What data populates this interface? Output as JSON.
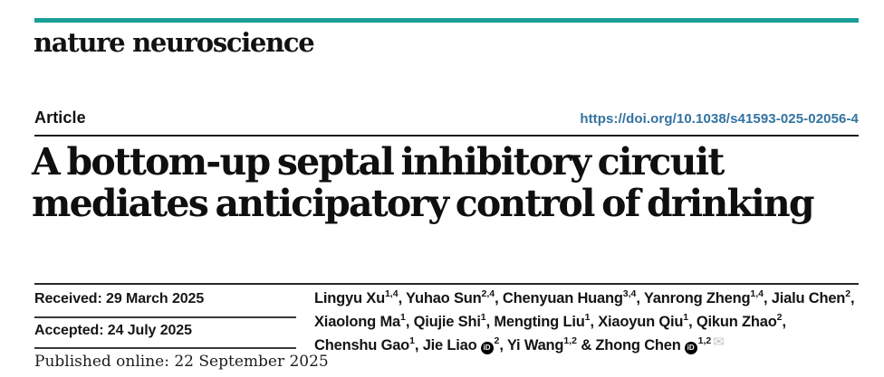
{
  "colors": {
    "brand_teal": "#189e97",
    "link_blue": "#3273a0",
    "envelope_gray": "#c6c6c6",
    "text_black": "#141414"
  },
  "brand": {
    "wordmark": "nature neuroscience"
  },
  "header": {
    "article_label": "Article",
    "doi_url": "https://doi.org/10.1038/s41593-025-02056-4"
  },
  "title": {
    "line1": "A bottom-up septal inhibitory circuit",
    "line2": "mediates anticipatory control of drinking"
  },
  "dates": {
    "received_label": "Received: 29 March 2025",
    "accepted_label": "Accepted: 24 July 2025",
    "published_label": "Published online: 22 September 2025"
  },
  "icons": {
    "orcid_glyph": "iD",
    "email_glyph": "✉"
  },
  "authors": [
    {
      "line": 1,
      "name": "Lingyu Xu",
      "sup": "1,4",
      "sep": ", "
    },
    {
      "line": 1,
      "name": "Yuhao Sun",
      "sup": "2,4",
      "sep": ", "
    },
    {
      "line": 1,
      "name": "Chenyuan Huang",
      "sup": "3,4",
      "sep": ", "
    },
    {
      "line": 1,
      "name": "Yanrong Zheng",
      "sup": "1,4",
      "sep": ", "
    },
    {
      "line": 1,
      "name": "Jialu Chen",
      "sup": "2",
      "sep": ","
    },
    {
      "line": 2,
      "name": "Xiaolong Ma",
      "sup": "1",
      "sep": ", "
    },
    {
      "line": 2,
      "name": "Qiujie Shi",
      "sup": "1",
      "sep": ", "
    },
    {
      "line": 2,
      "name": "Mengting Liu",
      "sup": "1",
      "sep": ", "
    },
    {
      "line": 2,
      "name": "Xiaoyun Qiu",
      "sup": "1",
      "sep": ", "
    },
    {
      "line": 2,
      "name": "Qikun Zhao",
      "sup": "2",
      "sep": ","
    },
    {
      "line": 3,
      "name": "Chenshu Gao",
      "sup": "1",
      "sep": ", "
    },
    {
      "line": 3,
      "name": "Jie Liao",
      "sup": "2",
      "sep": ", ",
      "orcid": true
    },
    {
      "line": 3,
      "name": "Yi Wang",
      "sup": "1,2",
      "sep": " & "
    },
    {
      "line": 3,
      "name": "Zhong Chen",
      "sup": "1,2",
      "sep": "",
      "orcid": true,
      "email": true
    }
  ]
}
